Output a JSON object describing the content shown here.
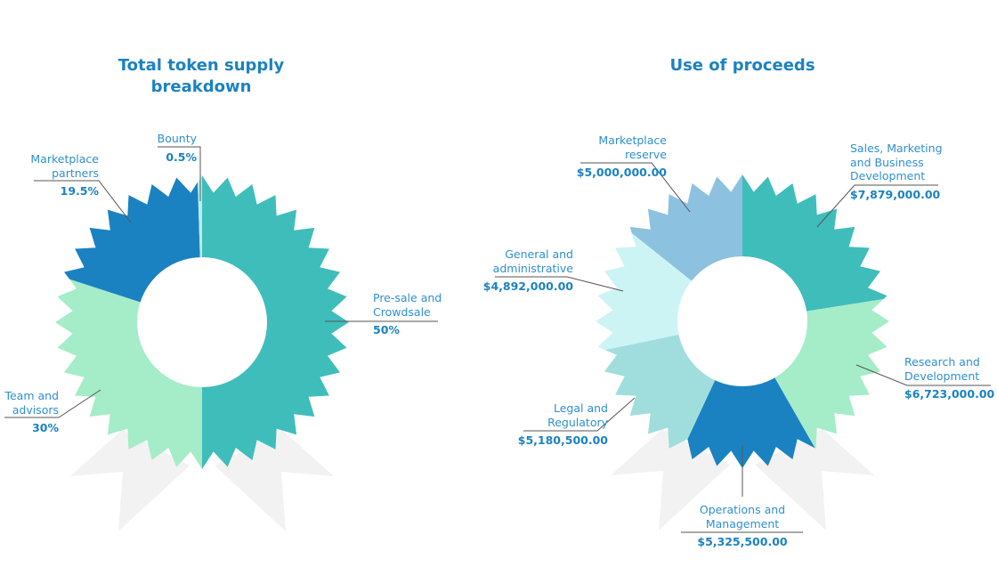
{
  "chart_data": [
    {
      "type": "pie",
      "variant": "donut",
      "title": "Total token supply breakdown",
      "unit": "%",
      "slices": [
        {
          "label": "Pre-sale and Crowdsale",
          "value": 50,
          "display": "50%",
          "color": "#3fbdbb"
        },
        {
          "label": "Team and advisors",
          "value": 30,
          "display": "30%",
          "color": "#a5ecc8"
        },
        {
          "label": "Marketplace partners",
          "value": 19.5,
          "display": "19.5%",
          "color": "#1b82c1"
        },
        {
          "label": "Bounty",
          "value": 0.5,
          "display": "0.5%",
          "color": "#b9ecf0"
        }
      ]
    },
    {
      "type": "pie",
      "variant": "donut",
      "title": "Use of proceeds",
      "unit": "USD",
      "slices": [
        {
          "label": "Sales, Marketing and Business Development",
          "value": 7879000,
          "display": "$7,879,000.00",
          "color": "#3fbdbb"
        },
        {
          "label": "Research and Development",
          "value": 6723000,
          "display": "$6,723,000.00",
          "color": "#a5ecc8"
        },
        {
          "label": "Operations and Management",
          "value": 5325500,
          "display": "$5,325,500.00",
          "color": "#1b82c1"
        },
        {
          "label": "Legal and Regulatory",
          "value": 5180500,
          "display": "$5,180,500.00",
          "color": "#a0dedd"
        },
        {
          "label": "General and administrative",
          "value": 4892000,
          "display": "$4,892,000.00",
          "color": "#cdf4f5"
        },
        {
          "label": "Marketplace reserve",
          "value": 5000000,
          "display": "$5,000,000.00",
          "color": "#8dc1e0"
        }
      ]
    }
  ],
  "titles": {
    "left_line1": "Total token supply",
    "left_line2": "breakdown",
    "right": "Use of proceeds"
  },
  "labels": {
    "bounty": [
      "Bounty"
    ],
    "marketplace_partners": [
      "Marketplace",
      "partners"
    ],
    "presale": [
      "Pre-sale and",
      "Crowdsale"
    ],
    "team": [
      "Team and",
      "advisors"
    ],
    "marketplace_reserve": [
      "Marketplace",
      "reserve"
    ],
    "sales": [
      "Sales, Marketing",
      "and Business",
      "Development"
    ],
    "general": [
      "General and",
      "administrative"
    ],
    "research": [
      "Research and",
      "Development"
    ],
    "legal": [
      "Legal and",
      "Regulatory"
    ],
    "operations": [
      "Operations and",
      "Management"
    ]
  },
  "colors": {
    "ribbon": "#f2f2f2",
    "title": "#1b82c1",
    "label": "#2f8fcf",
    "leader": "#555555"
  }
}
